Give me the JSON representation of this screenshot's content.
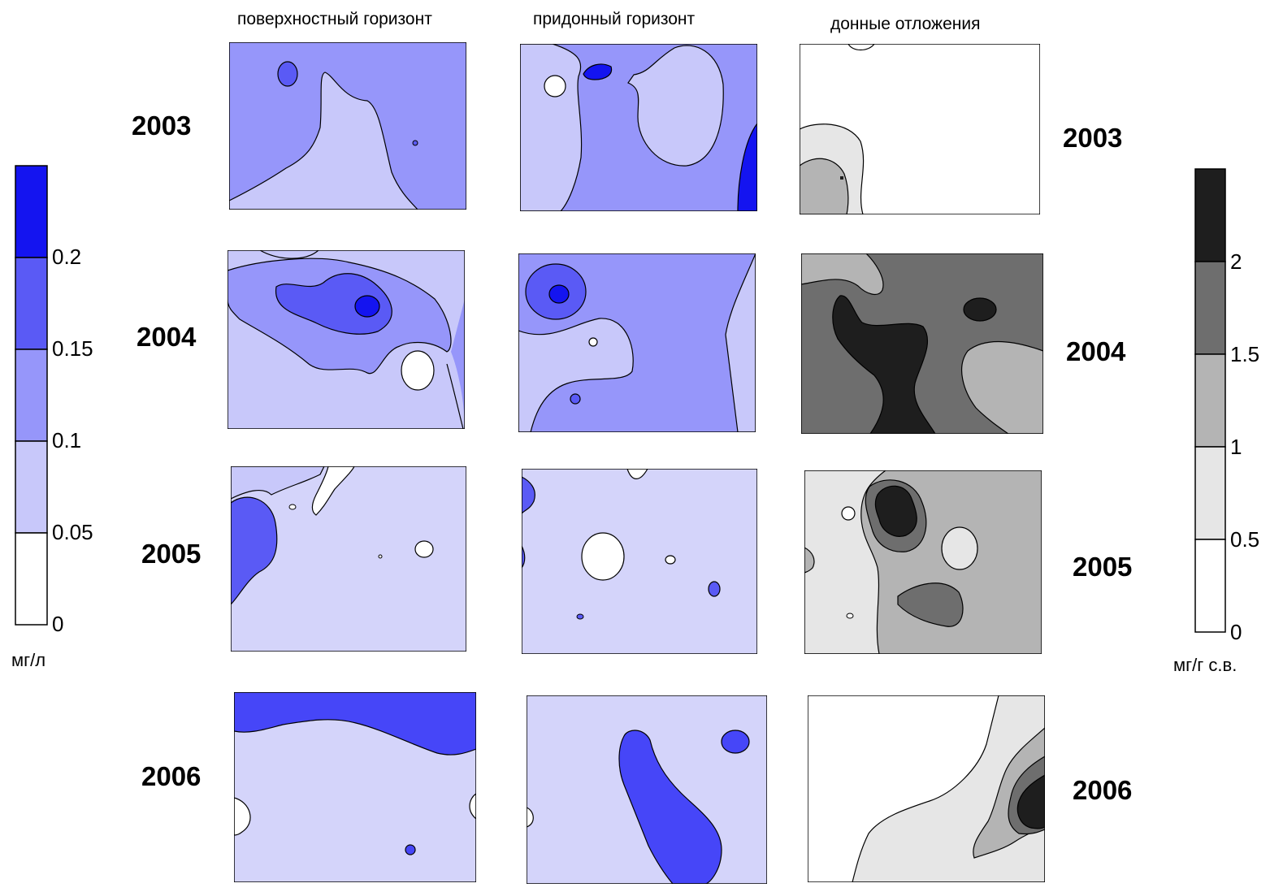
{
  "column_titles": [
    "поверхностный горизонт",
    "придонный горизонт",
    "донные отложения"
  ],
  "years": [
    "2003",
    "2004",
    "2005",
    "2006"
  ],
  "colors": {
    "blue_levels": [
      "#ffffff",
      "#c8c8fa",
      "#9696fa",
      "#5a5af5",
      "#1414f0"
    ],
    "blue_fill_2005_2006": "#d4d4fa",
    "gray_levels": [
      "#ffffff",
      "#e6e6e6",
      "#b4b4b4",
      "#6e6e6e",
      "#1e1e1e"
    ]
  },
  "colorbar_left": {
    "tick_labels": [
      "0",
      "0.05",
      "0.1",
      "0.15",
      "0.2"
    ],
    "unit": "мг/л"
  },
  "colorbar_right": {
    "tick_labels": [
      "0",
      "0.5",
      "1",
      "1.5",
      "2"
    ],
    "unit": "мг/г с.в."
  },
  "chart_data": {
    "type": "heatmap",
    "rows": [
      "2003",
      "2004",
      "2005",
      "2006"
    ],
    "columns": [
      "поверхностный горизонт",
      "придонный горизонт",
      "донные отложения"
    ],
    "water_scale": {
      "levels": [
        0,
        0.05,
        0.1,
        0.15,
        0.2
      ],
      "unit": "мг/л"
    },
    "sediment_scale": {
      "levels": [
        0,
        0.5,
        1,
        1.5,
        2
      ],
      "unit": "мг/г с.в."
    },
    "dominant_level_class": [
      [
        2,
        2,
        0
      ],
      [
        1,
        2,
        3
      ],
      [
        1,
        1,
        2
      ],
      [
        1,
        1,
        0
      ]
    ]
  }
}
